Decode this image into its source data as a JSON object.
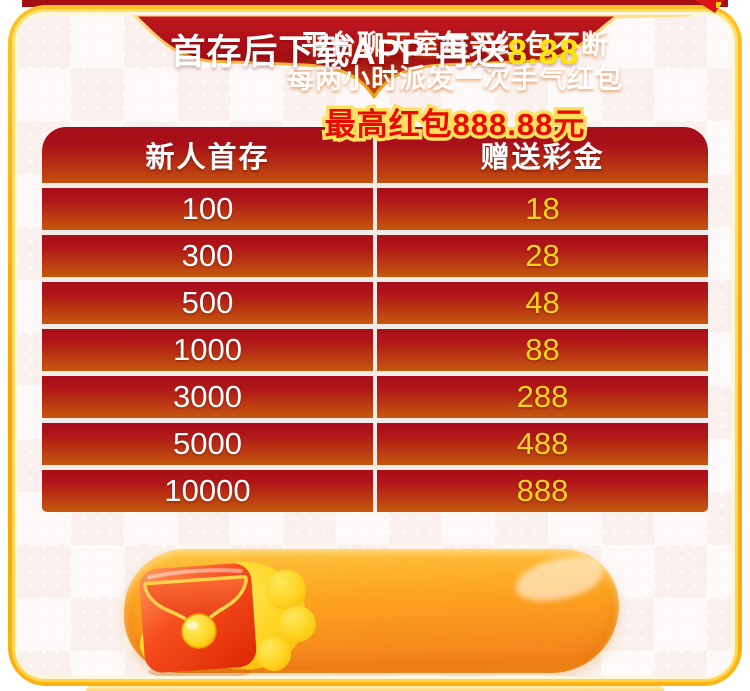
{
  "top_banner": {
    "text_main": "首存后下载APP 再送",
    "text_highlight": "8.88"
  },
  "table": {
    "headers": [
      "新人首存",
      "赠送彩金"
    ],
    "rows": [
      [
        "100",
        "18"
      ],
      [
        "300",
        "28"
      ],
      [
        "500",
        "48"
      ],
      [
        "1000",
        "88"
      ],
      [
        "3000",
        "288"
      ],
      [
        "5000",
        "488"
      ],
      [
        "10000",
        "888"
      ]
    ]
  },
  "promo": {
    "icon": "red-envelope-icon",
    "line1": "平台聊天室每天红包不断",
    "line2": "每两小时派发一次手气红包",
    "line3": "最高红包888.88元"
  },
  "colors": {
    "frame_gold": "#ffc125",
    "banner_red_dark": "#a30d14",
    "banner_red_bright": "#c2181f",
    "row_red_top": "#a80d1b",
    "row_orange_bottom": "#c4580e",
    "bonus_yellow": "#fdd31c",
    "highlight_yellow": "#ffe50c",
    "pill_orange": "#fb9a22",
    "promo_red": "#e90b00",
    "background_cream": "#faf1ef"
  }
}
